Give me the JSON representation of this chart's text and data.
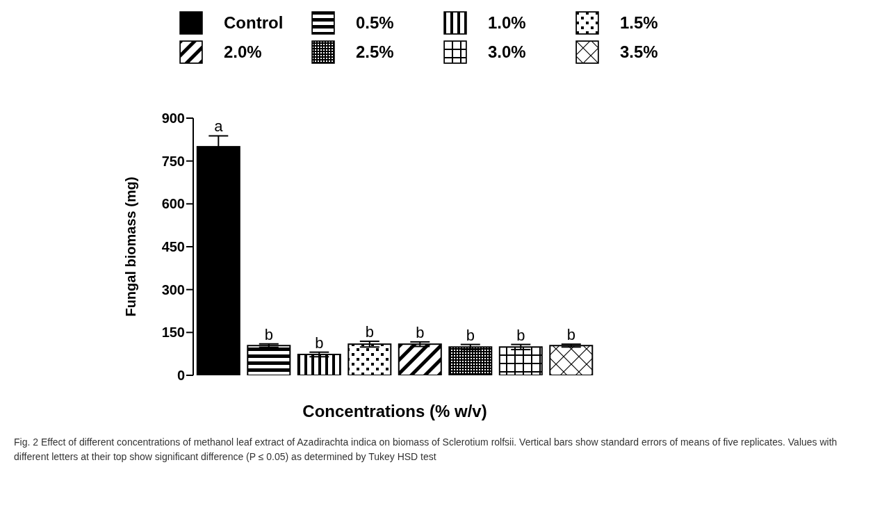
{
  "chart_data": {
    "type": "bar",
    "stacked": true,
    "categories": [
      null,
      null,
      null,
      null,
      null,
      null,
      null,
      null
    ],
    "series": [
      {
        "name": "Control",
        "color": "#000000",
        "values": [
          800,
          null,
          null,
          null,
          null,
          null,
          null,
          null
        ],
        "errors": [
          38,
          null,
          null,
          null,
          null,
          null,
          null,
          null
        ],
        "value_labels": [
          "a",
          null,
          null,
          null,
          null,
          null,
          null,
          null
        ]
      },
      {
        "name": "0.5%",
        "color": "#000000",
        "values": [
          null,
          104,
          null,
          null,
          null,
          null,
          null,
          null
        ],
        "errors": [
          null,
          6,
          null,
          null,
          null,
          null,
          null,
          null
        ],
        "value_labels": [
          null,
          "b",
          null,
          null,
          null,
          null,
          null,
          null
        ]
      },
      {
        "name": "1.0%",
        "color": "#000000",
        "values": [
          null,
          null,
          73,
          null,
          null,
          null,
          null,
          null
        ],
        "errors": [
          null,
          null,
          8,
          null,
          null,
          null,
          null,
          null
        ],
        "value_labels": [
          null,
          null,
          "b",
          null,
          null,
          null,
          null,
          null
        ]
      },
      {
        "name": "1.5%",
        "color": "#000000",
        "values": [
          null,
          null,
          null,
          109,
          null,
          null,
          null,
          null
        ],
        "errors": [
          null,
          null,
          null,
          10,
          null,
          null,
          null,
          null
        ],
        "value_labels": [
          null,
          null,
          null,
          "b",
          null,
          null,
          null,
          null
        ]
      },
      {
        "name": "2.0%",
        "color": "#000000",
        "values": [
          null,
          null,
          null,
          null,
          109,
          null,
          null,
          null
        ],
        "errors": [
          null,
          null,
          null,
          null,
          8,
          null,
          null,
          null
        ],
        "value_labels": [
          null,
          null,
          null,
          null,
          "b",
          null,
          null,
          null
        ]
      },
      {
        "name": "2.5%",
        "color": "#000000",
        "values": [
          null,
          null,
          null,
          null,
          null,
          99,
          null,
          null
        ],
        "errors": [
          null,
          null,
          null,
          null,
          null,
          9,
          null,
          null
        ],
        "value_labels": [
          null,
          null,
          null,
          null,
          null,
          "b",
          null,
          null
        ]
      },
      {
        "name": "3.0%",
        "color": "#000000",
        "values": [
          null,
          null,
          null,
          null,
          null,
          null,
          99,
          null
        ],
        "errors": [
          null,
          null,
          null,
          null,
          null,
          null,
          9,
          null
        ],
        "value_labels": [
          null,
          null,
          null,
          null,
          null,
          null,
          "b",
          null
        ]
      },
      {
        "name": "3.5%",
        "color": "#000000",
        "values": [
          null,
          null,
          null,
          null,
          null,
          null,
          null,
          104
        ],
        "errors": [
          null,
          null,
          null,
          null,
          null,
          null,
          null,
          5
        ],
        "value_labels": [
          null,
          null,
          null,
          null,
          null,
          null,
          null,
          "b"
        ]
      }
    ],
    "ylim": [
      0,
      900
    ],
    "yticks": [
      0,
      150,
      300,
      450,
      600,
      750,
      900
    ],
    "ylabel": "Fungal biomass (mg)",
    "xlabel": "Concentrations (% w/v)",
    "tick_labels": "y",
    "legend": "top",
    "annotations": [
      "Fig. 2 Effect of different concentrations of methanol leaf extract of Azadirachta indica on biomass of Sclerotium rolfsii. Vertical bars show standard errors of means of five replicates. Values with different letters at their top show significant difference (P ≤ 0.05) as determined by Tukey HSD test"
    ]
  }
}
